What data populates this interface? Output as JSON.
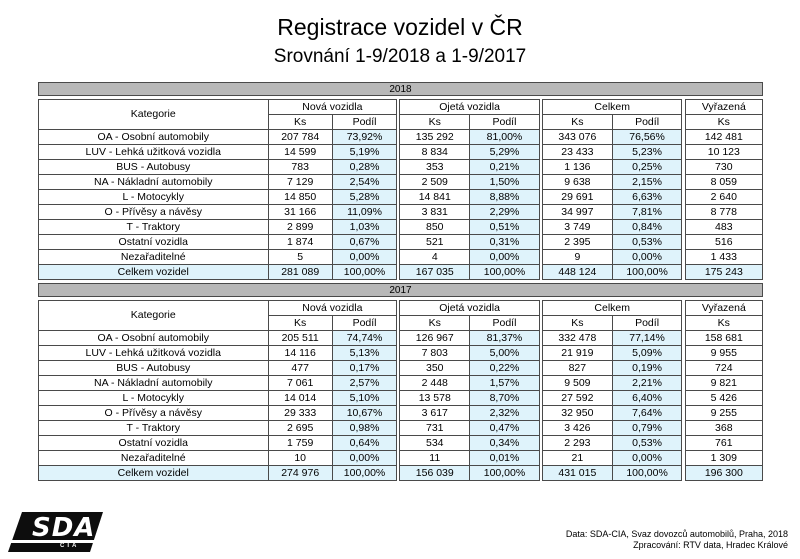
{
  "title": "Registrace vozidel v ČR",
  "subtitle": "Srovnání 1-9/2018 a 1-9/2017",
  "headers": {
    "category": "Kategorie",
    "new": "Nová vozidla",
    "used": "Ojetá vozidla",
    "total": "Celkem",
    "scrapped": "Vyřazená",
    "ks": "Ks",
    "share": "Podíl"
  },
  "tables": [
    {
      "year": "2018",
      "rows": [
        {
          "cat": "OA - Osobní automobily",
          "n_ks": "207 784",
          "n_p": "73,92%",
          "u_ks": "135 292",
          "u_p": "81,00%",
          "t_ks": "343 076",
          "t_p": "76,56%",
          "s_ks": "142 481"
        },
        {
          "cat": "LUV - Lehká užitková vozidla",
          "n_ks": "14 599",
          "n_p": "5,19%",
          "u_ks": "8 834",
          "u_p": "5,29%",
          "t_ks": "23 433",
          "t_p": "5,23%",
          "s_ks": "10 123"
        },
        {
          "cat": "BUS - Autobusy",
          "n_ks": "783",
          "n_p": "0,28%",
          "u_ks": "353",
          "u_p": "0,21%",
          "t_ks": "1 136",
          "t_p": "0,25%",
          "s_ks": "730"
        },
        {
          "cat": "NA - Nákladní automobily",
          "n_ks": "7 129",
          "n_p": "2,54%",
          "u_ks": "2 509",
          "u_p": "1,50%",
          "t_ks": "9 638",
          "t_p": "2,15%",
          "s_ks": "8 059"
        },
        {
          "cat": "L - Motocykly",
          "n_ks": "14 850",
          "n_p": "5,28%",
          "u_ks": "14 841",
          "u_p": "8,88%",
          "t_ks": "29 691",
          "t_p": "6,63%",
          "s_ks": "2 640"
        },
        {
          "cat": "O - Přívěsy a návěsy",
          "n_ks": "31 166",
          "n_p": "11,09%",
          "u_ks": "3 831",
          "u_p": "2,29%",
          "t_ks": "34 997",
          "t_p": "7,81%",
          "s_ks": "8 778"
        },
        {
          "cat": "T - Traktory",
          "n_ks": "2 899",
          "n_p": "1,03%",
          "u_ks": "850",
          "u_p": "0,51%",
          "t_ks": "3 749",
          "t_p": "0,84%",
          "s_ks": "483"
        },
        {
          "cat": "Ostatní vozidla",
          "n_ks": "1 874",
          "n_p": "0,67%",
          "u_ks": "521",
          "u_p": "0,31%",
          "t_ks": "2 395",
          "t_p": "0,53%",
          "s_ks": "516"
        },
        {
          "cat": "Nezařaditelné",
          "n_ks": "5",
          "n_p": "0,00%",
          "u_ks": "4",
          "u_p": "0,00%",
          "t_ks": "9",
          "t_p": "0,00%",
          "s_ks": "1 433"
        },
        {
          "cat": "Celkem vozidel",
          "n_ks": "281 089",
          "n_p": "100,00%",
          "u_ks": "167 035",
          "u_p": "100,00%",
          "t_ks": "448 124",
          "t_p": "100,00%",
          "s_ks": "175 243",
          "highlight": true
        }
      ]
    },
    {
      "year": "2017",
      "rows": [
        {
          "cat": "OA - Osobní automobily",
          "n_ks": "205 511",
          "n_p": "74,74%",
          "u_ks": "126 967",
          "u_p": "81,37%",
          "t_ks": "332 478",
          "t_p": "77,14%",
          "s_ks": "158 681"
        },
        {
          "cat": "LUV - Lehká užitková vozidla",
          "n_ks": "14 116",
          "n_p": "5,13%",
          "u_ks": "7 803",
          "u_p": "5,00%",
          "t_ks": "21 919",
          "t_p": "5,09%",
          "s_ks": "9 955"
        },
        {
          "cat": "BUS - Autobusy",
          "n_ks": "477",
          "n_p": "0,17%",
          "u_ks": "350",
          "u_p": "0,22%",
          "t_ks": "827",
          "t_p": "0,19%",
          "s_ks": "724"
        },
        {
          "cat": "NA - Nákladní automobily",
          "n_ks": "7 061",
          "n_p": "2,57%",
          "u_ks": "2 448",
          "u_p": "1,57%",
          "t_ks": "9 509",
          "t_p": "2,21%",
          "s_ks": "9 821"
        },
        {
          "cat": "L - Motocykly",
          "n_ks": "14 014",
          "n_p": "5,10%",
          "u_ks": "13 578",
          "u_p": "8,70%",
          "t_ks": "27 592",
          "t_p": "6,40%",
          "s_ks": "5 426"
        },
        {
          "cat": "O - Přívěsy a návěsy",
          "n_ks": "29 333",
          "n_p": "10,67%",
          "u_ks": "3 617",
          "u_p": "2,32%",
          "t_ks": "32 950",
          "t_p": "7,64%",
          "s_ks": "9 255"
        },
        {
          "cat": "T - Traktory",
          "n_ks": "2 695",
          "n_p": "0,98%",
          "u_ks": "731",
          "u_p": "0,47%",
          "t_ks": "3 426",
          "t_p": "0,79%",
          "s_ks": "368"
        },
        {
          "cat": "Ostatní vozidla",
          "n_ks": "1 759",
          "n_p": "0,64%",
          "u_ks": "534",
          "u_p": "0,34%",
          "t_ks": "2 293",
          "t_p": "0,53%",
          "s_ks": "761"
        },
        {
          "cat": "Nezařaditelné",
          "n_ks": "10",
          "n_p": "0,00%",
          "u_ks": "11",
          "u_p": "0,01%",
          "t_ks": "21",
          "t_p": "0,00%",
          "s_ks": "1 309"
        },
        {
          "cat": "Celkem vozidel",
          "n_ks": "274 976",
          "n_p": "100,00%",
          "u_ks": "156 039",
          "u_p": "100,00%",
          "t_ks": "431 015",
          "t_p": "100,00%",
          "s_ks": "196 300",
          "highlight": true
        }
      ]
    }
  ],
  "logo": {
    "main": "SDA",
    "sub": "CIA",
    "color": "#0d0d0d"
  },
  "source_line1": "Data: SDA-CIA, Svaz dovozců automobilů, Praha, 2018",
  "source_line2": "Zpracování: RTV data, Hradec Králové"
}
